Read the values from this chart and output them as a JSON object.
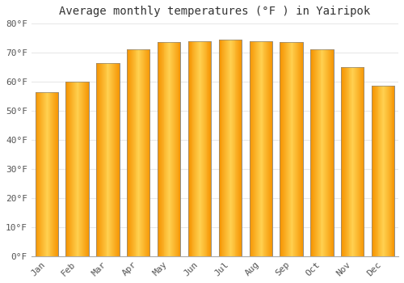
{
  "title": "Average monthly temperatures (°F ) in Yairipok",
  "months": [
    "Jan",
    "Feb",
    "Mar",
    "Apr",
    "May",
    "Jun",
    "Jul",
    "Aug",
    "Sep",
    "Oct",
    "Nov",
    "Dec"
  ],
  "values": [
    56.5,
    60.0,
    66.5,
    71.0,
    73.5,
    74.0,
    74.5,
    74.0,
    73.5,
    71.0,
    65.0,
    58.5
  ],
  "ylim": [
    0,
    80
  ],
  "yticks": [
    0,
    10,
    20,
    30,
    40,
    50,
    60,
    70,
    80
  ],
  "ytick_labels": [
    "0°F",
    "10°F",
    "20°F",
    "30°F",
    "40°F",
    "50°F",
    "60°F",
    "70°F",
    "80°F"
  ],
  "background_color": "#FFFFFF",
  "grid_color": "#E8E8E8",
  "bar_color_center": "#FFC025",
  "bar_color_edge": "#F59300",
  "bar_border_color": "#888888",
  "title_fontsize": 10,
  "tick_fontsize": 8,
  "bar_width": 0.75
}
